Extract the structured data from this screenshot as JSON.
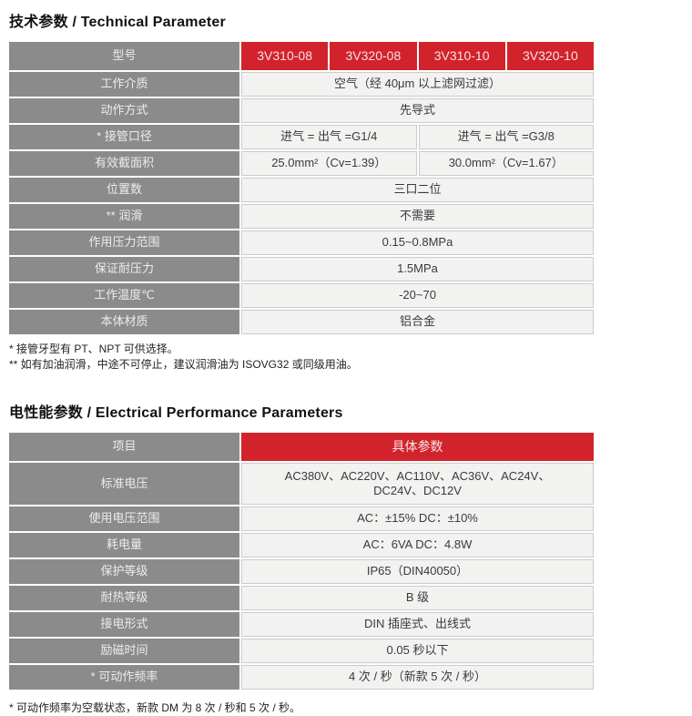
{
  "colors": {
    "accent_red": "#d2232c",
    "label_gray": "#8b8b8b",
    "value_bg": "#f2f2f1",
    "value_border": "#cbcbcb"
  },
  "technical": {
    "title": "技术参数 / Technical Parameter",
    "header": {
      "label": "型号",
      "models": [
        "3V310-08",
        "3V320-08",
        "3V310-10",
        "3V320-10"
      ]
    },
    "rows": [
      {
        "label": "工作介质",
        "cells": [
          {
            "text": "空气（经 40μm 以上滤网过滤）"
          }
        ]
      },
      {
        "label": "动作方式",
        "cells": [
          {
            "text": "先导式"
          }
        ]
      },
      {
        "label": "* 接管口径",
        "cells": [
          {
            "text": "进气 = 出气 =G1/4"
          },
          {
            "text": "进气 = 出气 =G3/8"
          }
        ]
      },
      {
        "label": "有效截面积",
        "cells": [
          {
            "text": "25.0mm²（Cv=1.39）"
          },
          {
            "text": "30.0mm²（Cv=1.67）"
          }
        ]
      },
      {
        "label": "位置数",
        "cells": [
          {
            "text": "三口二位"
          }
        ]
      },
      {
        "label": "** 润滑",
        "cells": [
          {
            "text": "不需要"
          }
        ]
      },
      {
        "label": "作用压力范围",
        "cells": [
          {
            "text": "0.15~0.8MPa"
          }
        ]
      },
      {
        "label": "保证耐压力",
        "cells": [
          {
            "text": "1.5MPa"
          }
        ]
      },
      {
        "label": "工作温度℃",
        "cells": [
          {
            "text": "-20~70"
          }
        ]
      },
      {
        "label": "本体材质",
        "cells": [
          {
            "text": "铝合金"
          }
        ]
      }
    ],
    "footnotes": [
      "* 接管牙型有 PT、NPT 可供选择。",
      "** 如有加油润滑，中途不可停止，建议润滑油为 ISOVG32 或同级用油。"
    ]
  },
  "electrical": {
    "title": "电性能参数 / Electrical Performance Parameters",
    "header": {
      "label": "项目",
      "value": "具体参数"
    },
    "rows": [
      {
        "label": "标准电压",
        "value": "AC380V、AC220V、AC110V、AC36V、AC24V、\nDC24V、DC12V"
      },
      {
        "label": "使用电压范围",
        "value": "AC：±15%  DC：±10%"
      },
      {
        "label": "耗电量",
        "value": "AC：6VA  DC：4.8W"
      },
      {
        "label": "保护等级",
        "value": "IP65（DIN40050）"
      },
      {
        "label": "耐热等级",
        "value": "B 级"
      },
      {
        "label": "接电形式",
        "value": "DIN 插座式、出线式"
      },
      {
        "label": "励磁时间",
        "value": "0.05 秒以下"
      },
      {
        "label": "* 可动作频率",
        "value": "4 次 / 秒（新款 5 次 / 秒）"
      }
    ],
    "footnote": "* 可动作频率为空载状态，新款 DM 为 8 次 / 秒和 5 次 / 秒。"
  }
}
